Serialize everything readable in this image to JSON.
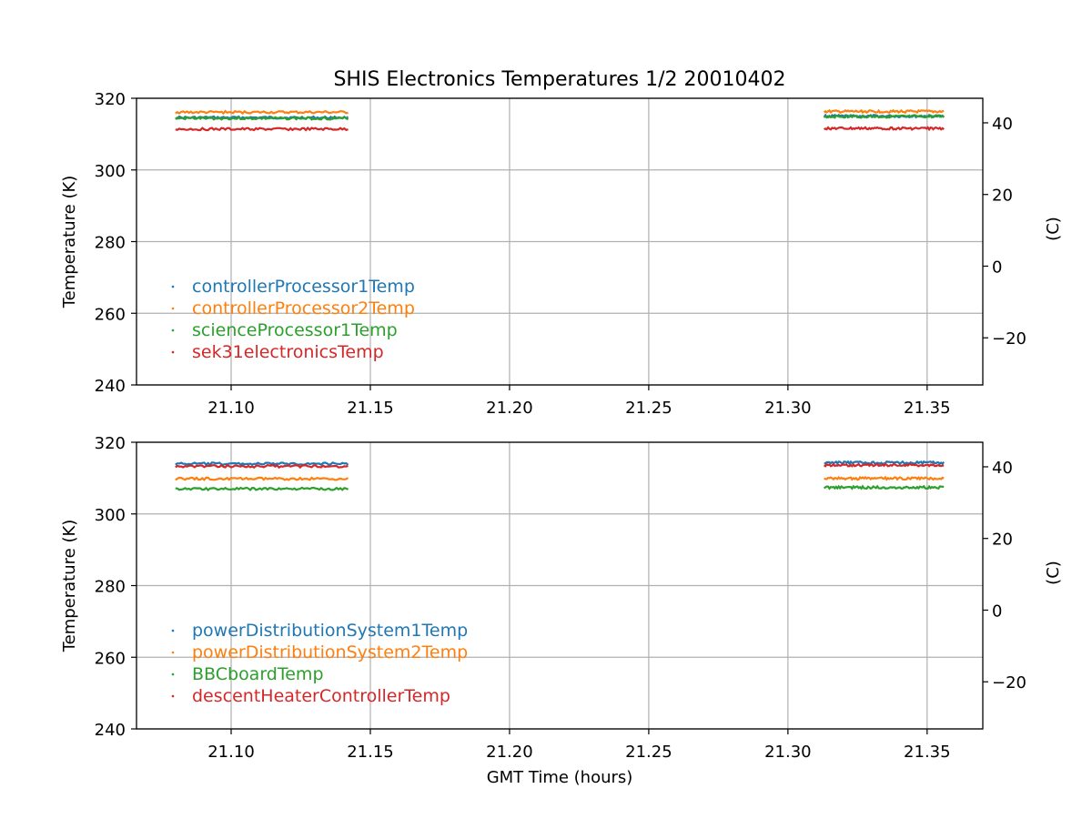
{
  "title": "SHIS Electronics Temperatures 1/2 20010402",
  "xlabel": "GMT Time (hours)",
  "colors": {
    "c0": "#1f77b4",
    "c1": "#ff7f0e",
    "c2": "#2ca02c",
    "c3": "#d62728"
  },
  "chart_data": [
    {
      "type": "scatter",
      "title": "SHIS Electronics Temperatures 1/2 20010402",
      "xlabel": "",
      "ylabel": "Temperature (K)",
      "ylabel_right": "(C)",
      "xlim": [
        21.066,
        21.37
      ],
      "ylim": [
        240,
        320
      ],
      "ylim_right": [
        -33.15,
        46.85
      ],
      "xticks": [
        21.1,
        21.15,
        21.2,
        21.25,
        21.3,
        21.35
      ],
      "xtick_labels": [
        "21.10",
        "21.15",
        "21.20",
        "21.25",
        "21.30",
        "21.35"
      ],
      "yticks": [
        240,
        260,
        280,
        300,
        320
      ],
      "yticks_right": [
        -20,
        0,
        20,
        40
      ],
      "ytick_labels_right": [
        "−20",
        "0",
        "20",
        "40"
      ],
      "grid": true,
      "legend_position": "lower-left",
      "segments": [
        [
          21.08,
          21.142
        ],
        [
          21.313,
          21.356
        ]
      ],
      "series": [
        {
          "name": "controllerProcessor1Temp",
          "values": [
            314.6,
            315.0
          ],
          "color": "#1f77b4"
        },
        {
          "name": "controllerProcessor2Temp",
          "values": [
            316.1,
            316.3
          ],
          "color": "#ff7f0e"
        },
        {
          "name": "scienceProcessor1Temp",
          "values": [
            314.4,
            314.9
          ],
          "color": "#2ca02c"
        },
        {
          "name": "sek31electronicsTemp",
          "values": [
            311.4,
            311.6
          ],
          "color": "#d62728"
        }
      ]
    },
    {
      "type": "scatter",
      "title": "",
      "xlabel": "GMT Time (hours)",
      "ylabel": "Temperature (K)",
      "ylabel_right": "(C)",
      "xlim": [
        21.066,
        21.37
      ],
      "ylim": [
        240,
        320
      ],
      "ylim_right": [
        -33.15,
        46.85
      ],
      "xticks": [
        21.1,
        21.15,
        21.2,
        21.25,
        21.3,
        21.35
      ],
      "xtick_labels": [
        "21.10",
        "21.15",
        "21.20",
        "21.25",
        "21.30",
        "21.35"
      ],
      "yticks": [
        240,
        260,
        280,
        300,
        320
      ],
      "yticks_right": [
        -20,
        0,
        20,
        40
      ],
      "ytick_labels_right": [
        "−20",
        "0",
        "20",
        "40"
      ],
      "grid": true,
      "legend_position": "lower-left",
      "segments": [
        [
          21.08,
          21.142
        ],
        [
          21.313,
          21.356
        ]
      ],
      "series": [
        {
          "name": "powerDistributionSystem1Temp",
          "values": [
            314.0,
            314.3
          ],
          "color": "#1f77b4"
        },
        {
          "name": "powerDistributionSystem2Temp",
          "values": [
            309.8,
            309.9
          ],
          "color": "#ff7f0e"
        },
        {
          "name": "BBCboardTemp",
          "values": [
            307.0,
            307.4
          ],
          "color": "#2ca02c"
        },
        {
          "name": "descentHeaterControllerTemp",
          "values": [
            313.3,
            313.6
          ],
          "color": "#d62728"
        }
      ]
    }
  ]
}
